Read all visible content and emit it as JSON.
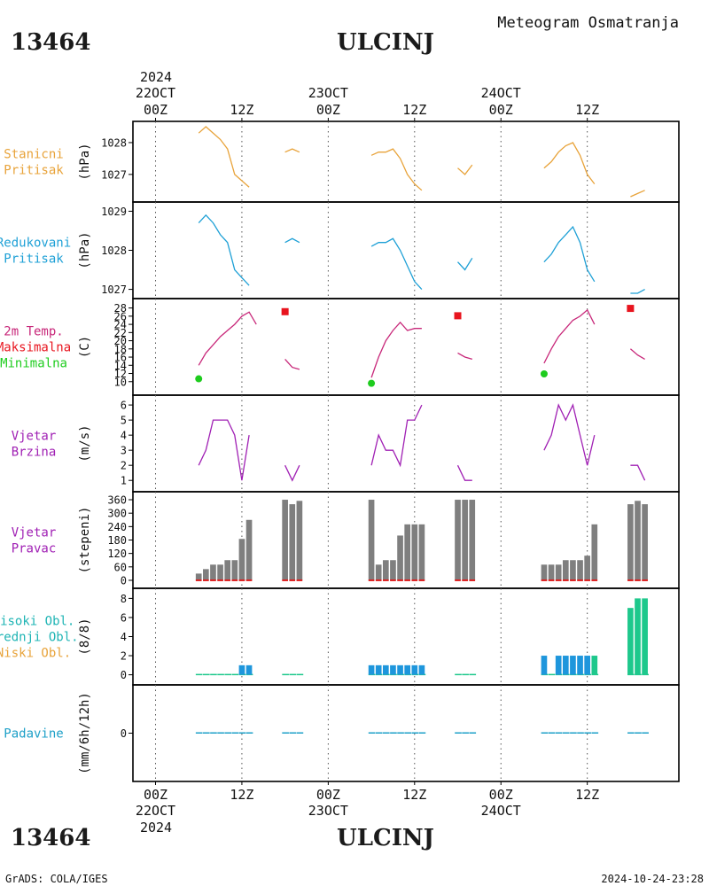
{
  "header": {
    "station_id": "13464",
    "station_name": "ULCINJ",
    "subtitle": "Meteogram Osmatranja"
  },
  "footer": {
    "station_id": "13464",
    "station_name": "ULCINJ",
    "credit": "GrADS: COLA/IGES",
    "timestamp": "2024-10-24-23:28"
  },
  "time_axis": {
    "top_year": "2024",
    "bottom_year": "2024",
    "ticks": [
      {
        "h": 0,
        "time": "00Z",
        "date": "22OCT"
      },
      {
        "h": 12,
        "time": "12Z",
        "date": ""
      },
      {
        "h": 24,
        "time": "00Z",
        "date": "23OCT"
      },
      {
        "h": 36,
        "time": "12Z",
        "date": ""
      },
      {
        "h": 48,
        "time": "00Z",
        "date": "24OCT"
      },
      {
        "h": 60,
        "time": "12Z",
        "date": ""
      }
    ]
  },
  "panel_labels": {
    "station_pressure": [
      "Stanicni",
      "Pritisak"
    ],
    "reduced_pressure": [
      "Redukovani",
      "Pritisak"
    ],
    "temperature": [
      "2m Temp.",
      "Maksimalna",
      "Minimalna"
    ],
    "wind_speed": [
      "Vjetar",
      "Brzina"
    ],
    "wind_direction": [
      "Vjetar",
      "Pravac"
    ],
    "clouds": [
      "Visoki Obl.",
      "Srednji Obl.",
      "Niski Obl."
    ],
    "precip": [
      "Padavine"
    ]
  },
  "units": {
    "station_pressure": "(hPa)",
    "reduced_pressure": "(hPa)",
    "temperature": "(C)",
    "wind_speed": "(m/s)",
    "wind_direction": "(stepeni)",
    "clouds": "(8/8)",
    "precip": "(mm/6h/12h)"
  },
  "colors": {
    "station_pressure": "#e8a33a",
    "reduced_pressure": "#1ea0d6",
    "temperature": "#c8287a",
    "tmax": "#e8141e",
    "tmin": "#1ecc1e",
    "wind_speed": "#a020b4",
    "wind_direction_bar": "#7f7f7f",
    "wind_direction_base": "#dd2222",
    "cloud_mid": "#1e96dc",
    "cloud_high": "#1ec88c",
    "cloud_low": "#e8a33a",
    "precip": "#1ea0c8",
    "label_station_pressure": "#e8a33a",
    "label_reduced_pressure": "#1ea0d6",
    "label_tmax": "#e8141e",
    "label_tmin": "#1ecc1e",
    "label_wind": "#a020b4",
    "label_clouds_high": "#1eb4b4",
    "label_clouds_mid": "#1eb4b4",
    "label_clouds_low": "#e8a33a",
    "label_precip": "#1ea0c8"
  },
  "chart_data": [
    {
      "name": "station_pressure",
      "type": "line",
      "ylabel": "(hPa)",
      "ylim": [
        1026.3,
        1028.5
      ],
      "yticks": [
        1027,
        1028
      ],
      "segments": [
        [
          [
            6,
            1028.3
          ],
          [
            7,
            1028.5
          ],
          [
            8,
            1028.3
          ],
          [
            9,
            1028.1
          ],
          [
            10,
            1027.8
          ],
          [
            11,
            1027.0
          ],
          [
            12,
            1026.8
          ],
          [
            13,
            1026.6
          ]
        ],
        [
          [
            18,
            1027.7
          ],
          [
            19,
            1027.8
          ],
          [
            20,
            1027.7
          ]
        ],
        [
          [
            30,
            1027.6
          ],
          [
            31,
            1027.7
          ],
          [
            32,
            1027.7
          ],
          [
            33,
            1027.8
          ],
          [
            34,
            1027.5
          ],
          [
            35,
            1027.0
          ],
          [
            36,
            1026.7
          ],
          [
            37,
            1026.5
          ]
        ],
        [
          [
            42,
            1027.2
          ],
          [
            43,
            1027.0
          ],
          [
            44,
            1027.3
          ]
        ],
        [
          [
            54,
            1027.2
          ],
          [
            55,
            1027.4
          ],
          [
            56,
            1027.7
          ],
          [
            57,
            1027.9
          ],
          [
            58,
            1028.0
          ],
          [
            59,
            1027.6
          ],
          [
            60,
            1027.0
          ],
          [
            61,
            1026.7
          ]
        ],
        [
          [
            66,
            1026.3
          ],
          [
            67,
            1026.4
          ],
          [
            68,
            1026.5
          ]
        ]
      ]
    },
    {
      "name": "reduced_pressure",
      "type": "line",
      "ylabel": "(hPa)",
      "ylim": [
        1026.9,
        1029.1
      ],
      "yticks": [
        1027,
        1028,
        1029
      ],
      "segments": [
        [
          [
            6,
            1028.7
          ],
          [
            7,
            1028.9
          ],
          [
            8,
            1028.7
          ],
          [
            9,
            1028.4
          ],
          [
            10,
            1028.2
          ],
          [
            11,
            1027.5
          ],
          [
            12,
            1027.3
          ],
          [
            13,
            1027.1
          ]
        ],
        [
          [
            18,
            1028.2
          ],
          [
            19,
            1028.3
          ],
          [
            20,
            1028.2
          ]
        ],
        [
          [
            30,
            1028.1
          ],
          [
            31,
            1028.2
          ],
          [
            32,
            1028.2
          ],
          [
            33,
            1028.3
          ],
          [
            34,
            1028.0
          ],
          [
            35,
            1027.6
          ],
          [
            36,
            1027.2
          ],
          [
            37,
            1027.0
          ]
        ],
        [
          [
            42,
            1027.7
          ],
          [
            43,
            1027.5
          ],
          [
            44,
            1027.8
          ]
        ],
        [
          [
            54,
            1027.7
          ],
          [
            55,
            1027.9
          ],
          [
            56,
            1028.2
          ],
          [
            57,
            1028.4
          ],
          [
            58,
            1028.6
          ],
          [
            59,
            1028.2
          ],
          [
            60,
            1027.5
          ],
          [
            61,
            1027.2
          ]
        ],
        [
          [
            66,
            1026.9
          ],
          [
            67,
            1026.9
          ],
          [
            68,
            1027.0
          ]
        ]
      ]
    },
    {
      "name": "temperature",
      "type": "line",
      "ylabel": "(C)",
      "ylim": [
        8,
        29
      ],
      "yticks": [
        10,
        12,
        14,
        16,
        18,
        20,
        22,
        24,
        26,
        28
      ],
      "segments": [
        [
          [
            6,
            14
          ],
          [
            7,
            17
          ],
          [
            8,
            19
          ],
          [
            9,
            21
          ],
          [
            10,
            22.5
          ],
          [
            11,
            24
          ],
          [
            12,
            26
          ],
          [
            13,
            27
          ],
          [
            14,
            24
          ]
        ],
        [
          [
            18,
            15.5
          ],
          [
            19,
            13.5
          ],
          [
            20,
            13
          ]
        ],
        [
          [
            30,
            11
          ],
          [
            31,
            16
          ],
          [
            32,
            20
          ],
          [
            33,
            22.5
          ],
          [
            34,
            24.5
          ],
          [
            35,
            22.5
          ],
          [
            36,
            23
          ],
          [
            37,
            23
          ]
        ],
        [
          [
            42,
            17
          ],
          [
            43,
            16
          ],
          [
            44,
            15.5
          ]
        ],
        [
          [
            54,
            14.5
          ],
          [
            55,
            18
          ],
          [
            56,
            21
          ],
          [
            57,
            23
          ],
          [
            58,
            25
          ],
          [
            59,
            26
          ],
          [
            60,
            27.5
          ],
          [
            61,
            24
          ]
        ],
        [
          [
            66,
            18
          ],
          [
            67,
            16.5
          ],
          [
            68,
            15.5
          ]
        ]
      ],
      "tmax": [
        [
          18,
          27.1
        ],
        [
          42,
          26.1
        ],
        [
          66,
          27.9
        ]
      ],
      "tmin": [
        [
          6,
          10.7
        ],
        [
          30,
          9.6
        ],
        [
          54,
          11.9
        ]
      ]
    },
    {
      "name": "wind_speed",
      "type": "line",
      "ylabel": "(m/s)",
      "ylim": [
        0.6,
        6.3
      ],
      "yticks": [
        1,
        2,
        3,
        4,
        5,
        6
      ],
      "segments": [
        [
          [
            6,
            2
          ],
          [
            7,
            3
          ],
          [
            8,
            5
          ],
          [
            9,
            5
          ],
          [
            10,
            5
          ],
          [
            11,
            4
          ],
          [
            12,
            1
          ],
          [
            13,
            4
          ]
        ],
        [
          [
            18,
            2
          ],
          [
            19,
            1
          ],
          [
            20,
            2
          ]
        ],
        [
          [
            30,
            2
          ],
          [
            31,
            4
          ],
          [
            32,
            3
          ],
          [
            33,
            3
          ],
          [
            34,
            2
          ],
          [
            35,
            5
          ],
          [
            36,
            5
          ],
          [
            37,
            6
          ]
        ],
        [
          [
            42,
            2
          ],
          [
            43,
            1
          ],
          [
            44,
            1
          ]
        ],
        [
          [
            54,
            3
          ],
          [
            55,
            4
          ],
          [
            56,
            6
          ],
          [
            57,
            5
          ],
          [
            58,
            6
          ],
          [
            59,
            4
          ],
          [
            60,
            2
          ],
          [
            61,
            4
          ]
        ],
        [
          [
            66,
            2
          ],
          [
            67,
            2
          ],
          [
            68,
            1
          ]
        ]
      ]
    },
    {
      "name": "wind_direction",
      "type": "bar",
      "ylabel": "(stepeni)",
      "ylim": [
        -12,
        372
      ],
      "yticks": [
        0,
        60,
        120,
        180,
        240,
        300,
        360
      ],
      "bars": [
        [
          6,
          30
        ],
        [
          7,
          50
        ],
        [
          8,
          70
        ],
        [
          9,
          70
        ],
        [
          10,
          90
        ],
        [
          11,
          90
        ],
        [
          12,
          185
        ],
        [
          13,
          270
        ],
        [
          18,
          360
        ],
        [
          19,
          340
        ],
        [
          20,
          355
        ],
        [
          30,
          360
        ],
        [
          31,
          70
        ],
        [
          32,
          90
        ],
        [
          33,
          90
        ],
        [
          34,
          200
        ],
        [
          35,
          250
        ],
        [
          36,
          250
        ],
        [
          37,
          250
        ],
        [
          42,
          360
        ],
        [
          43,
          360
        ],
        [
          44,
          360
        ],
        [
          54,
          70
        ],
        [
          55,
          70
        ],
        [
          56,
          70
        ],
        [
          57,
          90
        ],
        [
          58,
          90
        ],
        [
          59,
          90
        ],
        [
          60,
          110
        ],
        [
          61,
          250
        ],
        [
          66,
          340
        ],
        [
          67,
          355
        ],
        [
          68,
          340
        ]
      ]
    },
    {
      "name": "clouds",
      "type": "bar",
      "ylabel": "(8/8)",
      "ylim": [
        -0.5,
        8.5
      ],
      "yticks": [
        0,
        2,
        4,
        6,
        8
      ],
      "series": [
        {
          "name": "Srednji Obl.",
          "color_key": "cloud_mid",
          "bars": [
            [
              12,
              1
            ],
            [
              13,
              1
            ],
            [
              30,
              1
            ],
            [
              31,
              1
            ],
            [
              32,
              1
            ],
            [
              33,
              1
            ],
            [
              34,
              1
            ],
            [
              35,
              1
            ],
            [
              36,
              1
            ],
            [
              37,
              1
            ],
            [
              54,
              2
            ],
            [
              56,
              2
            ],
            [
              57,
              2
            ],
            [
              58,
              2
            ],
            [
              59,
              2
            ],
            [
              60,
              2
            ]
          ]
        },
        {
          "name": "Visoki Obl.",
          "color_key": "cloud_high",
          "bars": [
            [
              61,
              2
            ],
            [
              66,
              7
            ],
            [
              67,
              8
            ],
            [
              68,
              8
            ]
          ]
        }
      ],
      "baseline_hours": [
        6,
        7,
        8,
        9,
        10,
        11,
        12,
        13,
        18,
        19,
        20,
        30,
        31,
        32,
        33,
        34,
        35,
        36,
        37,
        42,
        43,
        44,
        54,
        55,
        56,
        57,
        58,
        59,
        60,
        61,
        66,
        67,
        68
      ]
    },
    {
      "name": "precip",
      "type": "bar",
      "ylabel": "(mm/6h/12h)",
      "ylim": [
        -1,
        1
      ],
      "yticks": [
        0
      ],
      "baseline_hours": [
        6,
        7,
        8,
        9,
        10,
        11,
        12,
        13,
        18,
        19,
        20,
        30,
        31,
        32,
        33,
        34,
        35,
        36,
        37,
        42,
        43,
        44,
        54,
        55,
        56,
        57,
        58,
        59,
        60,
        61,
        66,
        67,
        68
      ]
    }
  ]
}
